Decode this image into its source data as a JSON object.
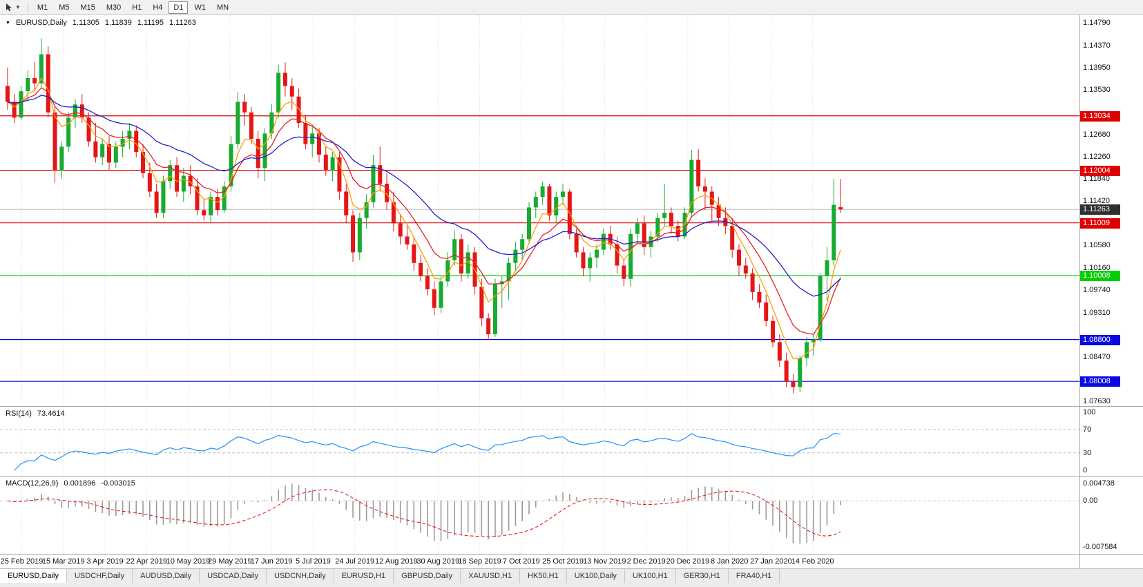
{
  "toolbar": {
    "timeframes": [
      "M1",
      "M5",
      "M15",
      "M30",
      "H1",
      "H4",
      "D1",
      "W1",
      "MN"
    ],
    "active": "D1"
  },
  "chart": {
    "title": {
      "symbol": "EURUSD,Daily",
      "open": "1.11305",
      "high": "1.11839",
      "low": "1.11195",
      "close": "1.11263"
    },
    "axis_ticks": [
      "1.14790",
      "1.14370",
      "1.13950",
      "1.13530",
      "1.12680",
      "1.12260",
      "1.11840",
      "1.11420",
      "1.10580",
      "1.10160",
      "1.09740",
      "1.09310",
      "1.08470",
      "1.07630"
    ],
    "levels": [
      {
        "price": 1.13034,
        "label": "1.13034",
        "color": "#dd0000"
      },
      {
        "price": 1.12004,
        "label": "1.12004",
        "color": "#dd0000"
      },
      {
        "price": 1.11009,
        "label": "1.11009",
        "color": "#dd0000"
      },
      {
        "price": 1.10008,
        "label": "1.10008",
        "color": "#00cf00"
      },
      {
        "price": 1.088,
        "label": "1.08800",
        "color": "#0a0ae0"
      },
      {
        "price": 1.08008,
        "label": "1.08008",
        "color": "#0a0ae0"
      }
    ],
    "bid": {
      "price": 1.11263,
      "label": "1.11263",
      "line_color": "#bdbdbd",
      "badge_color": "#2f2f2f"
    }
  },
  "chart_data": {
    "type": "candlestick",
    "symbol": "EURUSD",
    "timeframe": "Daily",
    "ylim": [
      1.0754,
      1.1494
    ],
    "up_color": "#17ab2f",
    "down_color": "#e41616",
    "x_labels": [
      "25 Feb 2019",
      "15 Mar 2019",
      "3 Apr 2019",
      "22 Apr 2019",
      "10 May 2019",
      "29 May 2019",
      "17 Jun 2019",
      "5 Jul 2019",
      "24 Jul 2019",
      "12 Aug 2019",
      "30 Aug 2019",
      "18 Sep 2019",
      "7 Oct 2019",
      "25 Oct 2019",
      "13 Nov 2019",
      "2 Dec 2019",
      "20 Dec 2019",
      "8 Jan 2020",
      "27 Jan 2020",
      "14 Feb 2020"
    ],
    "overlays": [
      {
        "name": "ma-fast-line",
        "period": 5,
        "color": "#ff9f00"
      },
      {
        "name": "ma-mid-line",
        "period": 10,
        "color": "#e82020"
      },
      {
        "name": "ma-slow-line",
        "period": 24,
        "color": "#2121cc"
      }
    ],
    "indicators": [
      {
        "type": "RSI",
        "period": 14,
        "last": "73.4614"
      },
      {
        "type": "MACD",
        "fast": 12,
        "slow": 26,
        "signal": 9,
        "last_main": "0.001896",
        "last_signal": "-0.003015"
      }
    ],
    "candles": [
      [
        1.136,
        1.1395,
        1.1315,
        1.133
      ],
      [
        1.133,
        1.1345,
        1.129,
        1.13
      ],
      [
        1.13,
        1.136,
        1.1295,
        1.135
      ],
      [
        1.135,
        1.139,
        1.133,
        1.1375
      ],
      [
        1.1375,
        1.1405,
        1.135,
        1.1365
      ],
      [
        1.1365,
        1.145,
        1.1355,
        1.142
      ],
      [
        1.142,
        1.1435,
        1.13,
        1.131
      ],
      [
        1.131,
        1.132,
        1.1177,
        1.12
      ],
      [
        1.12,
        1.1255,
        1.1185,
        1.1245
      ],
      [
        1.1245,
        1.131,
        1.1235,
        1.13
      ],
      [
        1.13,
        1.1335,
        1.128,
        1.1325
      ],
      [
        1.1325,
        1.1345,
        1.129,
        1.13
      ],
      [
        1.13,
        1.131,
        1.1245,
        1.1255
      ],
      [
        1.1255,
        1.129,
        1.1215,
        1.1225
      ],
      [
        1.1225,
        1.126,
        1.121,
        1.125
      ],
      [
        1.125,
        1.1265,
        1.12,
        1.1215
      ],
      [
        1.1215,
        1.1255,
        1.1205,
        1.1245
      ],
      [
        1.1245,
        1.1275,
        1.1225,
        1.126
      ],
      [
        1.126,
        1.129,
        1.124,
        1.1275
      ],
      [
        1.1275,
        1.1285,
        1.1225,
        1.1235
      ],
      [
        1.1235,
        1.125,
        1.1185,
        1.1195
      ],
      [
        1.1195,
        1.1215,
        1.115,
        1.116
      ],
      [
        1.116,
        1.1175,
        1.111,
        1.112
      ],
      [
        1.112,
        1.119,
        1.111,
        1.118
      ],
      [
        1.118,
        1.122,
        1.1165,
        1.121
      ],
      [
        1.121,
        1.1225,
        1.115,
        1.116
      ],
      [
        1.116,
        1.1205,
        1.114,
        1.119
      ],
      [
        1.119,
        1.121,
        1.1155,
        1.117
      ],
      [
        1.117,
        1.1185,
        1.1115,
        1.1125
      ],
      [
        1.1125,
        1.1145,
        1.1105,
        1.1115
      ],
      [
        1.1115,
        1.116,
        1.11,
        1.115
      ],
      [
        1.115,
        1.1165,
        1.1115,
        1.1125
      ],
      [
        1.1125,
        1.118,
        1.112,
        1.117
      ],
      [
        1.117,
        1.1265,
        1.116,
        1.125
      ],
      [
        1.125,
        1.1348,
        1.124,
        1.133
      ],
      [
        1.133,
        1.1345,
        1.1285,
        1.131
      ],
      [
        1.131,
        1.132,
        1.125,
        1.126
      ],
      [
        1.126,
        1.1275,
        1.1185,
        1.1205
      ],
      [
        1.1205,
        1.128,
        1.118,
        1.127
      ],
      [
        1.127,
        1.1325,
        1.126,
        1.131
      ],
      [
        1.131,
        1.14,
        1.13,
        1.1385
      ],
      [
        1.1385,
        1.1405,
        1.134,
        1.136
      ],
      [
        1.136,
        1.1375,
        1.1315,
        1.134
      ],
      [
        1.134,
        1.1355,
        1.128,
        1.129
      ],
      [
        1.129,
        1.1305,
        1.124,
        1.125
      ],
      [
        1.125,
        1.1285,
        1.1225,
        1.127
      ],
      [
        1.127,
        1.128,
        1.1215,
        1.123
      ],
      [
        1.123,
        1.1245,
        1.119,
        1.12
      ],
      [
        1.12,
        1.1235,
        1.118,
        1.1225
      ],
      [
        1.1225,
        1.1235,
        1.1145,
        1.116
      ],
      [
        1.116,
        1.1175,
        1.11,
        1.1115
      ],
      [
        1.1115,
        1.1125,
        1.1027,
        1.1045
      ],
      [
        1.1045,
        1.112,
        1.103,
        1.111
      ],
      [
        1.111,
        1.1155,
        1.109,
        1.114
      ],
      [
        1.114,
        1.123,
        1.113,
        1.121
      ],
      [
        1.121,
        1.1245,
        1.116,
        1.1175
      ],
      [
        1.1175,
        1.1195,
        1.1125,
        1.114
      ],
      [
        1.114,
        1.116,
        1.1085,
        1.11
      ],
      [
        1.11,
        1.1115,
        1.106,
        1.1075
      ],
      [
        1.1075,
        1.1095,
        1.105,
        1.106
      ],
      [
        1.106,
        1.1075,
        1.101,
        1.1025
      ],
      [
        1.1025,
        1.104,
        1.099,
        1.1
      ],
      [
        1.1,
        1.1015,
        1.0963,
        1.0975
      ],
      [
        1.0975,
        1.099,
        1.0926,
        1.094
      ],
      [
        1.094,
        1.1,
        1.093,
        1.099
      ],
      [
        1.099,
        1.1045,
        1.098,
        1.103
      ],
      [
        1.103,
        1.1087,
        1.102,
        1.107
      ],
      [
        1.107,
        1.108,
        1.099,
        1.1005
      ],
      [
        1.1005,
        1.106,
        1.0995,
        1.1045
      ],
      [
        1.1045,
        1.1055,
        1.0965,
        1.098
      ],
      [
        1.098,
        1.0995,
        1.0905,
        1.092
      ],
      [
        1.092,
        1.093,
        1.0879,
        1.089
      ],
      [
        1.089,
        1.0995,
        1.0885,
        1.0985
      ],
      [
        1.0985,
        1.1,
        1.094,
        1.099
      ],
      [
        1.099,
        1.1035,
        1.0955,
        1.1025
      ],
      [
        1.1025,
        1.1065,
        1.101,
        1.105
      ],
      [
        1.105,
        1.108,
        1.103,
        1.107
      ],
      [
        1.107,
        1.114,
        1.106,
        1.113
      ],
      [
        1.113,
        1.116,
        1.111,
        1.115
      ],
      [
        1.115,
        1.1179,
        1.1135,
        1.117
      ],
      [
        1.117,
        1.1175,
        1.1105,
        1.1115
      ],
      [
        1.1115,
        1.116,
        1.11,
        1.115
      ],
      [
        1.115,
        1.1175,
        1.1135,
        1.116
      ],
      [
        1.116,
        1.1165,
        1.107,
        1.108
      ],
      [
        1.108,
        1.109,
        1.1035,
        1.1045
      ],
      [
        1.1045,
        1.1055,
        1.1,
        1.1015
      ],
      [
        1.1015,
        1.1045,
        1.099,
        1.1035
      ],
      [
        1.1035,
        1.106,
        1.1015,
        1.105
      ],
      [
        1.105,
        1.109,
        1.104,
        1.108
      ],
      [
        1.108,
        1.1095,
        1.105,
        1.106
      ],
      [
        1.106,
        1.1075,
        1.1005,
        1.102
      ],
      [
        1.102,
        1.103,
        1.0981,
        1.0995
      ],
      [
        1.0995,
        1.109,
        1.098,
        1.108
      ],
      [
        1.108,
        1.111,
        1.106,
        1.11
      ],
      [
        1.11,
        1.1115,
        1.104,
        1.1055
      ],
      [
        1.1055,
        1.1085,
        1.1035,
        1.1075
      ],
      [
        1.1075,
        1.112,
        1.1065,
        1.111
      ],
      [
        1.111,
        1.1175,
        1.1095,
        1.112
      ],
      [
        1.112,
        1.113,
        1.108,
        1.1095
      ],
      [
        1.1095,
        1.1105,
        1.1066,
        1.1075
      ],
      [
        1.1075,
        1.113,
        1.107,
        1.112
      ],
      [
        1.112,
        1.1239,
        1.111,
        1.122
      ],
      [
        1.122,
        1.124,
        1.116,
        1.117
      ],
      [
        1.117,
        1.1185,
        1.1125,
        1.116
      ],
      [
        1.116,
        1.117,
        1.1105,
        1.1135
      ],
      [
        1.1135,
        1.115,
        1.1095,
        1.111
      ],
      [
        1.111,
        1.113,
        1.108,
        1.1095
      ],
      [
        1.1095,
        1.111,
        1.1035,
        1.105
      ],
      [
        1.105,
        1.106,
        1.1,
        1.102
      ],
      [
        1.102,
        1.1035,
        1.0995,
        1.1005
      ],
      [
        1.1005,
        1.1015,
        1.0955,
        1.097
      ],
      [
        1.097,
        1.0985,
        1.094,
        1.095
      ],
      [
        1.095,
        1.0965,
        1.0905,
        1.0915
      ],
      [
        1.0915,
        1.0925,
        1.0865,
        1.0875
      ],
      [
        1.0875,
        1.089,
        1.0828,
        1.084
      ],
      [
        1.084,
        1.0855,
        1.079,
        1.08
      ],
      [
        1.08,
        1.0815,
        1.0778,
        1.079
      ],
      [
        1.079,
        1.085,
        1.078,
        1.0845
      ],
      [
        1.0845,
        1.0885,
        1.083,
        1.0875
      ],
      [
        1.0875,
        1.089,
        1.085,
        1.088
      ],
      [
        1.088,
        1.1005,
        1.0875,
        1.1
      ],
      [
        1.1,
        1.1055,
        1.095,
        1.103
      ],
      [
        1.103,
        1.1184,
        1.102,
        1.1135
      ],
      [
        1.11305,
        1.11839,
        1.11195,
        1.11263
      ]
    ]
  },
  "rsi_panel": {
    "name": "RSI(14)",
    "value": "73.4614",
    "levels": [
      70,
      30
    ],
    "axis_labels": [
      "100",
      "70",
      "30",
      "0"
    ],
    "color": "#1e90ff"
  },
  "macd_panel": {
    "name": "MACD(12,26,9)",
    "value_main": "0.001896",
    "value_signal": "-0.003015",
    "axis_top": "0.004738",
    "axis_zero": "0.00",
    "axis_bottom": "-0.007584",
    "bar_color": "#9b9b9b",
    "signal_color": "#e81d1d"
  },
  "tabs": {
    "active_index": 0,
    "items": [
      "EURUSD,Daily",
      "USDCHF,Daily",
      "AUDUSD,Daily",
      "USDCAD,Daily",
      "USDCNH,Daily",
      "EURUSD,H1",
      "GBPUSD,Daily",
      "XAUUSD,H1",
      "HK50,H1",
      "UK100,Daily",
      "UK100,H1",
      "GER30,H1",
      "FRA40,H1"
    ]
  }
}
